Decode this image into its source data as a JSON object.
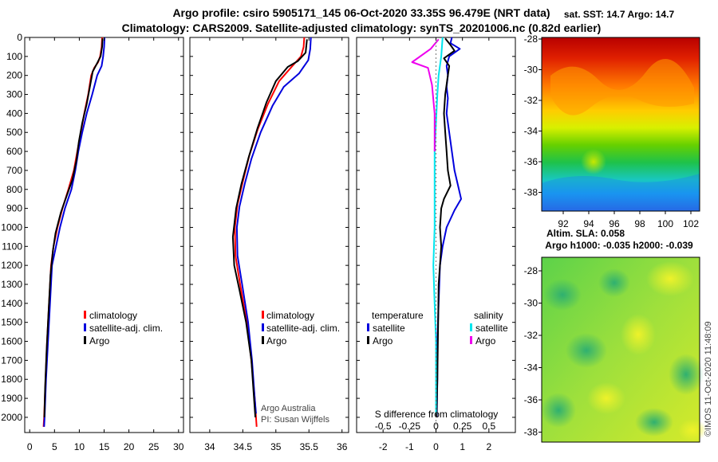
{
  "header": {
    "line1": "Argo profile: csiro 5905171_145 06-Oct-2020 33.35S 96.479E (NRT data)",
    "line2": "Climatology: CARS2009. Satellite-adjusted climatology: synTS_20201006.nc (0.82d earlier)"
  },
  "colors": {
    "climatology": "#ff0000",
    "satellite": "#0000dd",
    "argo": "#000000",
    "sat_salinity": "#00e5ee",
    "argo_salinity": "#ee00ee"
  },
  "chart_data": [
    {
      "type": "line",
      "name": "temperature-profile",
      "xlim": [
        -1,
        31
      ],
      "ylim": [
        0,
        2080
      ],
      "x_ticks": [
        0,
        5,
        10,
        15,
        20,
        25,
        30
      ],
      "y_ticks": [
        0,
        100,
        200,
        300,
        400,
        500,
        600,
        700,
        800,
        900,
        1000,
        1100,
        1200,
        1300,
        1400,
        1500,
        1600,
        1700,
        1800,
        1900,
        2000
      ],
      "legend": [
        "climatology",
        "satellite-adj. clim.",
        "Argo"
      ],
      "series": [
        {
          "name": "climatology",
          "color": "#ff0000",
          "points": [
            [
              14.6,
              0
            ],
            [
              14.5,
              50
            ],
            [
              14.2,
              100
            ],
            [
              13.8,
              130
            ],
            [
              13.0,
              160
            ],
            [
              12.4,
              200
            ],
            [
              11.8,
              300
            ],
            [
              11.0,
              400
            ],
            [
              10.3,
              500
            ],
            [
              9.6,
              600
            ],
            [
              8.9,
              700
            ],
            [
              7.8,
              800
            ],
            [
              6.6,
              900
            ],
            [
              5.6,
              1000
            ],
            [
              4.8,
              1100
            ],
            [
              4.3,
              1200
            ],
            [
              3.9,
              1400
            ],
            [
              3.5,
              1600
            ],
            [
              3.2,
              1800
            ],
            [
              2.9,
              2000
            ],
            [
              2.8,
              2050
            ]
          ]
        },
        {
          "name": "satellite-adj. clim.",
          "color": "#0000dd",
          "points": [
            [
              15.1,
              0
            ],
            [
              15.0,
              50
            ],
            [
              14.8,
              100
            ],
            [
              14.5,
              150
            ],
            [
              13.6,
              200
            ],
            [
              12.6,
              300
            ],
            [
              11.5,
              400
            ],
            [
              10.6,
              500
            ],
            [
              9.8,
              600
            ],
            [
              9.2,
              700
            ],
            [
              8.4,
              800
            ],
            [
              7.1,
              900
            ],
            [
              6.1,
              1000
            ],
            [
              5.3,
              1100
            ],
            [
              4.5,
              1200
            ],
            [
              4.1,
              1400
            ],
            [
              3.7,
              1600
            ],
            [
              3.3,
              1800
            ],
            [
              3.0,
              2000
            ],
            [
              2.9,
              2050
            ]
          ]
        },
        {
          "name": "Argo",
          "color": "#000000",
          "points": [
            [
              14.7,
              5
            ],
            [
              14.6,
              50
            ],
            [
              14.3,
              100
            ],
            [
              13.5,
              140
            ],
            [
              12.7,
              180
            ],
            [
              12.2,
              250
            ],
            [
              11.5,
              350
            ],
            [
              10.6,
              450
            ],
            [
              9.9,
              550
            ],
            [
              9.4,
              650
            ],
            [
              8.6,
              750
            ],
            [
              7.5,
              830
            ],
            [
              6.3,
              920
            ],
            [
              5.2,
              1030
            ],
            [
              4.7,
              1120
            ],
            [
              4.2,
              1250
            ],
            [
              3.8,
              1450
            ],
            [
              3.4,
              1650
            ],
            [
              3.1,
              1850
            ],
            [
              2.95,
              2000
            ]
          ]
        }
      ]
    },
    {
      "type": "line",
      "name": "salinity-profile",
      "xlim": [
        33.7,
        36.1
      ],
      "ylim": [
        0,
        2080
      ],
      "x_ticks": [
        34,
        34.5,
        35,
        35.5,
        36
      ],
      "x_tick_labels": [
        "34",
        "34.5",
        "35",
        "35.5",
        "36"
      ],
      "legend": [
        "climatology",
        "satellite-adj. clim.",
        "Argo"
      ],
      "series": [
        {
          "name": "climatology",
          "color": "#ff0000",
          "points": [
            [
              35.43,
              0
            ],
            [
              35.42,
              50
            ],
            [
              35.38,
              100
            ],
            [
              35.25,
              150
            ],
            [
              35.05,
              230
            ],
            [
              34.88,
              350
            ],
            [
              34.73,
              480
            ],
            [
              34.6,
              620
            ],
            [
              34.5,
              760
            ],
            [
              34.42,
              880
            ],
            [
              34.38,
              1000
            ],
            [
              34.39,
              1150
            ],
            [
              34.46,
              1300
            ],
            [
              34.56,
              1500
            ],
            [
              34.63,
              1700
            ],
            [
              34.68,
              1900
            ],
            [
              34.71,
              2050
            ]
          ]
        },
        {
          "name": "satellite-adj. clim.",
          "color": "#0000dd",
          "points": [
            [
              35.53,
              0
            ],
            [
              35.52,
              60
            ],
            [
              35.49,
              120
            ],
            [
              35.35,
              190
            ],
            [
              35.12,
              260
            ],
            [
              34.95,
              360
            ],
            [
              34.77,
              500
            ],
            [
              34.63,
              640
            ],
            [
              34.53,
              770
            ],
            [
              34.45,
              890
            ],
            [
              34.41,
              1000
            ],
            [
              34.42,
              1150
            ],
            [
              34.49,
              1300
            ],
            [
              34.58,
              1500
            ],
            [
              34.64,
              1700
            ],
            [
              34.68,
              1900
            ],
            [
              34.7,
              1980
            ]
          ]
        },
        {
          "name": "Argo",
          "color": "#000000",
          "points": [
            [
              35.47,
              10
            ],
            [
              35.45,
              80
            ],
            [
              35.33,
              125
            ],
            [
              35.18,
              155
            ],
            [
              35.0,
              230
            ],
            [
              34.86,
              340
            ],
            [
              34.72,
              480
            ],
            [
              34.59,
              630
            ],
            [
              34.48,
              770
            ],
            [
              34.4,
              900
            ],
            [
              34.35,
              1050
            ],
            [
              34.37,
              1200
            ],
            [
              34.45,
              1330
            ],
            [
              34.55,
              1500
            ],
            [
              34.63,
              1700
            ],
            [
              34.67,
              1900
            ],
            [
              34.69,
              2000
            ]
          ]
        }
      ]
    },
    {
      "type": "line",
      "name": "difference-from-climatology",
      "xlim": [
        -3,
        3
      ],
      "x_ticks": [
        -2,
        -1,
        0,
        1,
        2
      ],
      "x_tick_labels": [
        "-2",
        "-1",
        "0",
        "1",
        "2"
      ],
      "x_salinity_ticks": [
        "-0.5",
        "-0.25",
        "0",
        "0.25",
        "0.5"
      ],
      "xlabel": "S difference from climatology",
      "legend_headers": [
        "temperature",
        "salinity"
      ],
      "legend": [
        "satellite",
        "Argo",
        "satellite",
        "Argo"
      ],
      "series": [
        {
          "name": "temperature satellite",
          "color": "#0000dd",
          "points": [
            [
              0.6,
              0
            ],
            [
              0.55,
              30
            ],
            [
              0.9,
              60
            ],
            [
              0.5,
              100
            ],
            [
              0.4,
              150
            ],
            [
              0.45,
              200
            ],
            [
              0.4,
              260
            ],
            [
              0.45,
              320
            ],
            [
              0.4,
              400
            ],
            [
              0.5,
              500
            ],
            [
              0.6,
              600
            ],
            [
              0.7,
              700
            ],
            [
              0.85,
              790
            ],
            [
              0.95,
              850
            ],
            [
              0.7,
              910
            ],
            [
              0.4,
              1000
            ],
            [
              0.25,
              1100
            ],
            [
              0.15,
              1200
            ],
            [
              0.1,
              1400
            ],
            [
              0.05,
              1600
            ],
            [
              0.05,
              1800
            ],
            [
              0.03,
              2000
            ]
          ]
        },
        {
          "name": "temperature Argo",
          "color": "#000000",
          "points": [
            [
              0.35,
              5
            ],
            [
              0.55,
              40
            ],
            [
              0.7,
              70
            ],
            [
              0.3,
              110
            ],
            [
              0.5,
              150
            ],
            [
              0.45,
              200
            ],
            [
              0.35,
              300
            ],
            [
              0.3,
              400
            ],
            [
              0.35,
              500
            ],
            [
              0.4,
              600
            ],
            [
              0.45,
              700
            ],
            [
              0.55,
              780
            ],
            [
              0.3,
              850
            ],
            [
              0.2,
              900
            ],
            [
              0.15,
              1000
            ],
            [
              0.2,
              1100
            ],
            [
              0.15,
              1200
            ],
            [
              0.1,
              1300
            ],
            [
              0.08,
              1500
            ],
            [
              0.05,
              1800
            ],
            [
              0.02,
              2000
            ]
          ]
        },
        {
          "name": "salinity satellite",
          "color": "#00e5ee",
          "points": [
            [
              0.25,
              0
            ],
            [
              0.2,
              100
            ],
            [
              0.1,
              200
            ],
            [
              0.05,
              300
            ],
            [
              0.0,
              450
            ],
            [
              -0.05,
              600
            ],
            [
              -0.05,
              800
            ],
            [
              -0.05,
              1000
            ],
            [
              -0.1,
              1200
            ],
            [
              -0.05,
              1400
            ],
            [
              0.0,
              1600
            ],
            [
              0.0,
              1800
            ],
            [
              0.0,
              1980
            ]
          ]
        },
        {
          "name": "salinity Argo",
          "color": "#ee00ee",
          "points": [
            [
              0.1,
              10
            ],
            [
              -0.2,
              60
            ],
            [
              -0.9,
              130
            ],
            [
              -0.3,
              160
            ],
            [
              -0.15,
              250
            ],
            [
              -0.05,
              400
            ],
            [
              -0.05,
              600
            ]
          ]
        }
      ]
    }
  ],
  "legends": {
    "temperature": [
      "climatology",
      "satellite-adj. clim.",
      "Argo"
    ],
    "salinity": [
      "climatology",
      "satellite-adj. clim.",
      "Argo"
    ]
  },
  "credits": {
    "line1": "Argo Australia",
    "line2": "PI: Susan Wijffels"
  },
  "sst_map": {
    "title": "sat. SST: 14.7 Argo: 14.7",
    "lat_ticks": [
      "-28",
      "-30",
      "-32",
      "-34",
      "-36",
      "-38"
    ],
    "lon_ticks": [
      "92",
      "94",
      "96",
      "98",
      "100",
      "102"
    ]
  },
  "sla_map": {
    "title_line1": "Altim. SLA: 0.058",
    "title_line2": "Argo h1000: -0.035 h2000: -0.039",
    "lat_ticks": [
      "-28",
      "-30",
      "-32",
      "-34",
      "-36",
      "-38"
    ]
  },
  "watermark": "©IMOS 11-Oct-2020 11:48:09"
}
